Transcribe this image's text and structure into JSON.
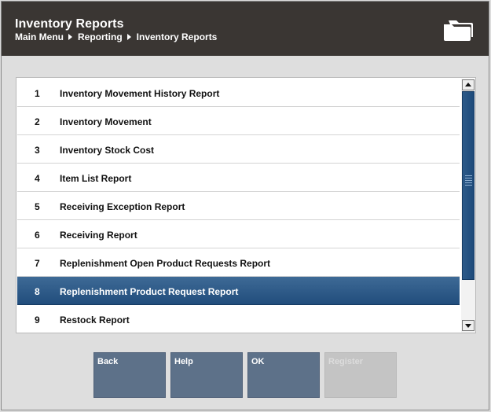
{
  "header": {
    "title": "Inventory Reports",
    "breadcrumb": [
      "Main Menu",
      "Reporting",
      "Inventory Reports"
    ],
    "icon": "folder-icon"
  },
  "list": {
    "selected_index": 7,
    "items": [
      {
        "num": "1",
        "label": "Inventory Movement History Report"
      },
      {
        "num": "2",
        "label": "Inventory Movement"
      },
      {
        "num": "3",
        "label": "Inventory Stock Cost"
      },
      {
        "num": "4",
        "label": "Item List Report"
      },
      {
        "num": "5",
        "label": "Receiving Exception Report"
      },
      {
        "num": "6",
        "label": "Receiving Report"
      },
      {
        "num": "7",
        "label": "Replenishment Open Product Requests Report"
      },
      {
        "num": "8",
        "label": "Replenishment Product Request Report"
      },
      {
        "num": "9",
        "label": "Restock Report"
      }
    ]
  },
  "buttons": {
    "back": "Back",
    "help": "Help",
    "ok": "OK",
    "register": "Register"
  },
  "colors": {
    "header_bg": "#3a3633",
    "selected_row": "#2a5583",
    "button_bg": "#5d7189",
    "button_disabled": "#c4c4c4"
  }
}
